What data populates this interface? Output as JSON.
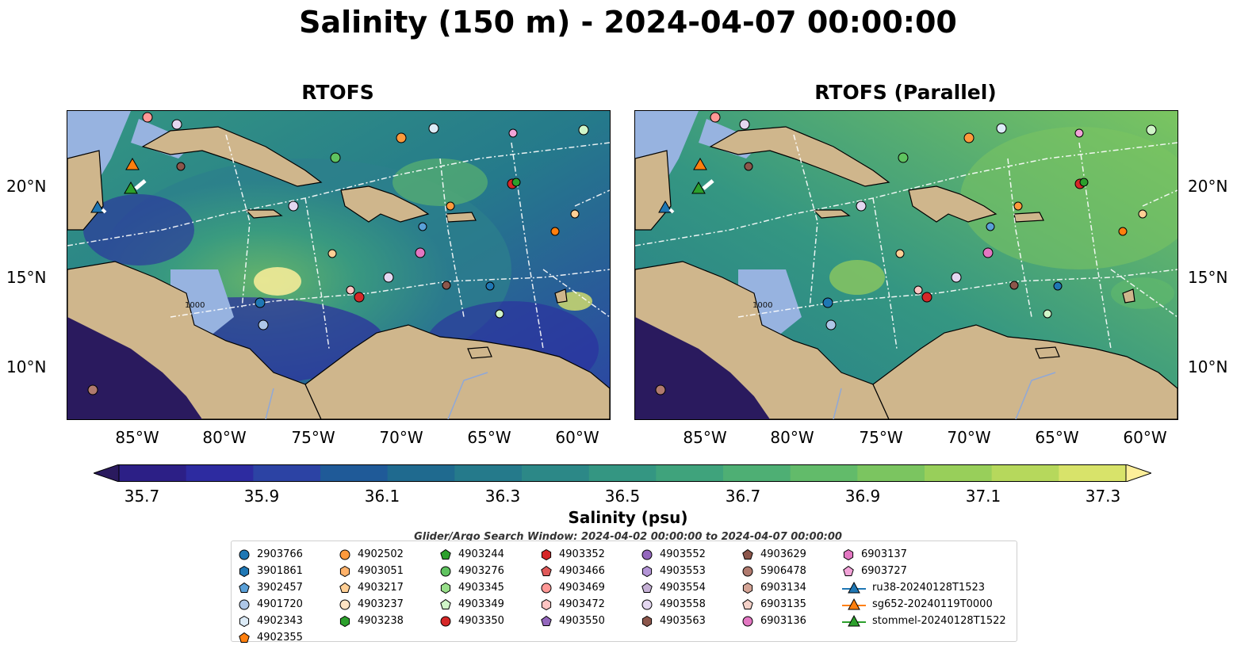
{
  "title": "Salinity (150 m) - 2024-04-07 00:00:00",
  "panels": [
    {
      "title": "RTOFS"
    },
    {
      "title": "RTOFS (Parallel)"
    }
  ],
  "axes": {
    "lat_labels": [
      "20°N",
      "15°N",
      "10°N"
    ],
    "lon_labels": [
      "85°W",
      "80°W",
      "75°W",
      "70°W",
      "65°W",
      "60°W"
    ],
    "isobath_label": "1000"
  },
  "colorbar": {
    "label": "Salinity (psu)",
    "ticks": [
      "35.7",
      "35.9",
      "36.1",
      "36.3",
      "36.5",
      "36.7",
      "36.9",
      "37.1",
      "37.3"
    ],
    "colormap": "haline",
    "colors": [
      "#2a1a5e",
      "#2c1f86",
      "#2d2ba0",
      "#2c43a4",
      "#1f5a98",
      "#1f6a8f",
      "#257a8b",
      "#2c8887",
      "#349682",
      "#3fa37c",
      "#4eaf74",
      "#62bb6a",
      "#7bc560",
      "#98cf5a",
      "#b6d85c",
      "#d8e36a",
      "#fdef9a"
    ]
  },
  "search_window": "Glider/Argo Search Window: 2024-04-02 00:00:00 to 2024-04-07 00:00:00",
  "legend": {
    "columns": [
      [
        {
          "label": "2903766",
          "marker": "circle",
          "color": "#1f77b4"
        },
        {
          "label": "3901861",
          "marker": "hexagon",
          "color": "#1f77b4"
        },
        {
          "label": "3902457",
          "marker": "pentagon",
          "color": "#5aa0d8"
        },
        {
          "label": "4901720",
          "marker": "circle",
          "color": "#aec7e8"
        },
        {
          "label": "4902343",
          "marker": "hexagon",
          "color": "#dcebf7"
        },
        {
          "label": "4902355",
          "marker": "pentagon",
          "color": "#ff7f0e"
        }
      ],
      [
        {
          "label": "4902502",
          "marker": "circle",
          "color": "#ff9a3c"
        },
        {
          "label": "4903051",
          "marker": "hexagon",
          "color": "#ffb26a"
        },
        {
          "label": "4903217",
          "marker": "pentagon",
          "color": "#ffcf95"
        },
        {
          "label": "4903237",
          "marker": "circle",
          "color": "#ffe4c4"
        },
        {
          "label": "4903238",
          "marker": "hexagon",
          "color": "#2ca02c"
        }
      ],
      [
        {
          "label": "4903244",
          "marker": "pentagon",
          "color": "#2ca02c"
        },
        {
          "label": "4903276",
          "marker": "circle",
          "color": "#5fc35f"
        },
        {
          "label": "4903345",
          "marker": "hexagon",
          "color": "#98df8a"
        },
        {
          "label": "4903349",
          "marker": "pentagon",
          "color": "#d0f5c8"
        },
        {
          "label": "4903350",
          "marker": "circle",
          "color": "#d62728"
        }
      ],
      [
        {
          "label": "4903352",
          "marker": "hexagon",
          "color": "#d62728"
        },
        {
          "label": "4903466",
          "marker": "pentagon",
          "color": "#e05a5a"
        },
        {
          "label": "4903469",
          "marker": "circle",
          "color": "#ff9896"
        },
        {
          "label": "4903472",
          "marker": "hexagon",
          "color": "#ffc4c2"
        },
        {
          "label": "4903550",
          "marker": "pentagon",
          "color": "#9467bd"
        }
      ],
      [
        {
          "label": "4903552",
          "marker": "circle",
          "color": "#9467bd"
        },
        {
          "label": "4903553",
          "marker": "hexagon",
          "color": "#b394d6"
        },
        {
          "label": "4903554",
          "marker": "pentagon",
          "color": "#c5b0d5"
        },
        {
          "label": "4903558",
          "marker": "circle",
          "color": "#e4d7f0"
        },
        {
          "label": "4903563",
          "marker": "hexagon",
          "color": "#8c564b"
        }
      ],
      [
        {
          "label": "4903629",
          "marker": "pentagon",
          "color": "#8c564b"
        },
        {
          "label": "5906478",
          "marker": "circle",
          "color": "#b07a6e"
        },
        {
          "label": "6903134",
          "marker": "hexagon",
          "color": "#d4a496"
        },
        {
          "label": "6903135",
          "marker": "pentagon",
          "color": "#f3d1c8"
        },
        {
          "label": "6903136",
          "marker": "circle",
          "color": "#e377c2"
        }
      ],
      [
        {
          "label": "6903137",
          "marker": "hexagon",
          "color": "#e377c2"
        },
        {
          "label": "6903727",
          "marker": "pentagon",
          "color": "#f2a3d8"
        },
        {
          "label": "ru38-20240128T1523",
          "marker": "triangle-line",
          "color": "#1f77b4"
        },
        {
          "label": "sg652-20240119T0000",
          "marker": "triangle-line",
          "color": "#ff7f0e"
        },
        {
          "label": "stommel-20240128T1522",
          "marker": "triangle-line",
          "color": "#2ca02c"
        }
      ]
    ]
  },
  "map_colors": {
    "land": "#cfb68c",
    "shelf_water": "#97b3e0",
    "deep_pacific": "#2a1a5e",
    "ocean_left": "#2c7f8c",
    "ocean_right": "#2f8a86",
    "eez_lines": "#ffffff",
    "rivers": "#8fa8d8"
  }
}
